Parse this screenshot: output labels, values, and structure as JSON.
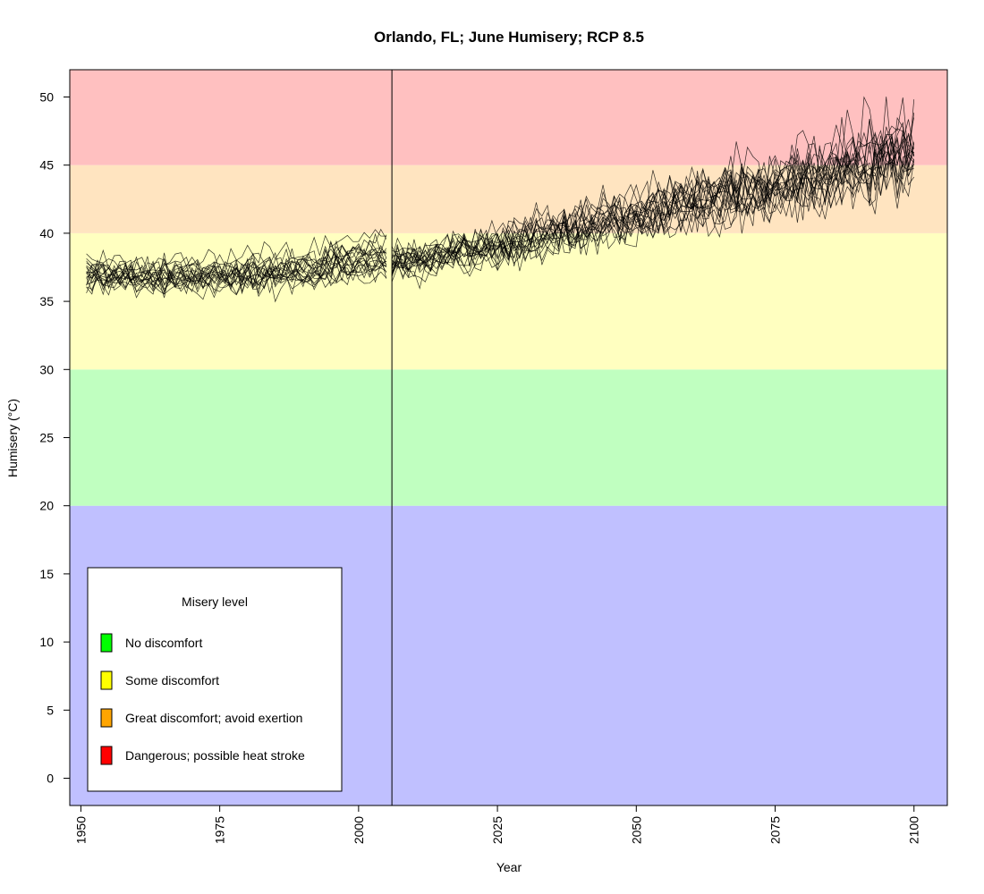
{
  "chart_data": {
    "type": "line",
    "title": "Orlando, FL; June Humisery; RCP 8.5",
    "xlabel": "Year",
    "ylabel": "Humisery (°C)",
    "xlim": [
      1948,
      2106
    ],
    "ylim": [
      -2,
      52
    ],
    "x_ticks": [
      1950,
      1975,
      2000,
      2025,
      2050,
      2075,
      2100
    ],
    "x_tick_labels": [
      "1950",
      "1975",
      "2000",
      "2025",
      "2050",
      "2075",
      "2100"
    ],
    "y_ticks": [
      0,
      5,
      10,
      15,
      20,
      25,
      30,
      35,
      40,
      45,
      50
    ],
    "y_tick_labels": [
      "0",
      "5",
      "10",
      "15",
      "20",
      "25",
      "30",
      "35",
      "40",
      "45",
      "50"
    ],
    "vertical_line_x": 2006,
    "bands": [
      {
        "from": -2,
        "to": 20,
        "color": "#c0c0ff"
      },
      {
        "from": 20,
        "to": 30,
        "color": "#c0ffc0"
      },
      {
        "from": 30,
        "to": 40,
        "color": "#ffffc0"
      },
      {
        "from": 40,
        "to": 45,
        "color": "#ffe4c0"
      },
      {
        "from": 45,
        "to": 52,
        "color": "#ffc0c0"
      }
    ],
    "ensemble": {
      "count": 20,
      "line_color": "#000000",
      "historical_years": [
        1951,
        2005
      ],
      "projection_years": [
        2006,
        2100
      ],
      "historical_mean": [
        {
          "x": 1951,
          "y": 37.0
        },
        {
          "x": 1960,
          "y": 36.9
        },
        {
          "x": 1970,
          "y": 36.9
        },
        {
          "x": 1980,
          "y": 37.0
        },
        {
          "x": 1990,
          "y": 37.4
        },
        {
          "x": 2000,
          "y": 38.0
        },
        {
          "x": 2005,
          "y": 38.3
        }
      ],
      "projection_mean": [
        {
          "x": 2006,
          "y": 37.8
        },
        {
          "x": 2015,
          "y": 38.4
        },
        {
          "x": 2025,
          "y": 39.1
        },
        {
          "x": 2035,
          "y": 40.0
        },
        {
          "x": 2045,
          "y": 40.9
        },
        {
          "x": 2055,
          "y": 41.9
        },
        {
          "x": 2065,
          "y": 42.8
        },
        {
          "x": 2075,
          "y": 43.5
        },
        {
          "x": 2085,
          "y": 44.5
        },
        {
          "x": 2095,
          "y": 45.6
        },
        {
          "x": 2100,
          "y": 46.0
        }
      ],
      "spread_start": 1.0,
      "spread_end": 2.5
    },
    "legend": {
      "title": "Misery level",
      "position": "bottom-left",
      "entries": [
        {
          "label": "No discomfort",
          "color": "#00ff00"
        },
        {
          "label": "Some discomfort",
          "color": "#ffff00"
        },
        {
          "label": "Great discomfort; avoid exertion",
          "color": "#ffa500"
        },
        {
          "label": "Dangerous; possible heat stroke",
          "color": "#ff0000"
        }
      ]
    },
    "grid": false
  }
}
